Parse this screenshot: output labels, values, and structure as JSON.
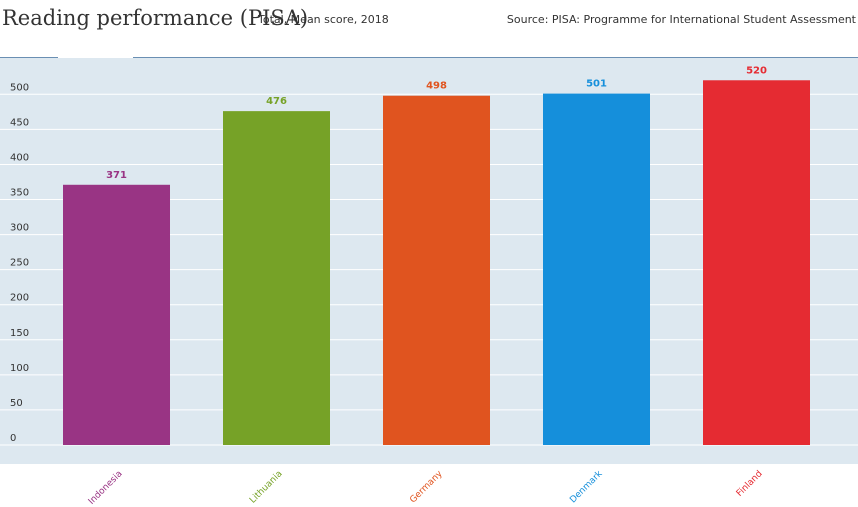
{
  "header": {
    "title": "Reading performance (PISA)",
    "subtitle": "Total, Mean score, 2018",
    "source": "Source: PISA: Programme for International Student Assessment"
  },
  "colors": {
    "plot_background": "#dde8f0",
    "gridline": "#ffffff",
    "axis_text": "#333333"
  },
  "chart_data": {
    "type": "bar",
    "title": "Reading performance (PISA)",
    "subtitle": "Total, Mean score, 2018",
    "categories": [
      "Indonesia",
      "Lithuania",
      "Germany",
      "Denmark",
      "Finland"
    ],
    "values": [
      371,
      476,
      498,
      501,
      520
    ],
    "colors": [
      "#993484",
      "#76a227",
      "#e0541f",
      "#158fdb",
      "#e52b32"
    ],
    "ylim": [
      0,
      550
    ],
    "yticks": [
      0,
      50,
      100,
      150,
      200,
      250,
      300,
      350,
      400,
      450,
      500
    ],
    "grid": true,
    "xlabel": "",
    "ylabel": ""
  }
}
